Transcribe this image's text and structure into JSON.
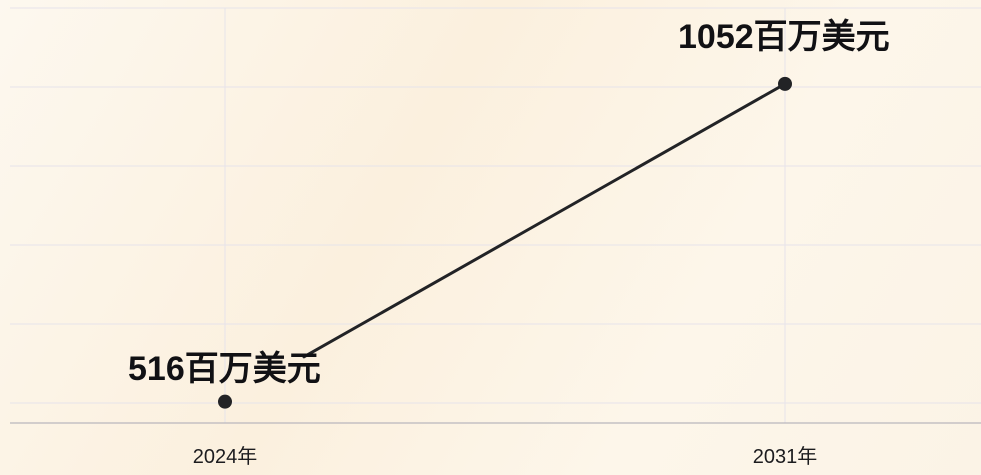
{
  "chart_data": {
    "type": "line",
    "categories": [
      "2024年",
      "2031年"
    ],
    "values": [
      516,
      1052
    ],
    "data_labels": [
      "516百万美元",
      "1052百万美元"
    ],
    "title": "",
    "xlabel": "",
    "ylabel": "",
    "ylim": [
      480,
      1180
    ],
    "grid": true,
    "legend": "none",
    "colors": {
      "line": "#222326",
      "point": "#222326",
      "grid": "#e6e3ea",
      "axis": "#b9b6bd"
    }
  }
}
